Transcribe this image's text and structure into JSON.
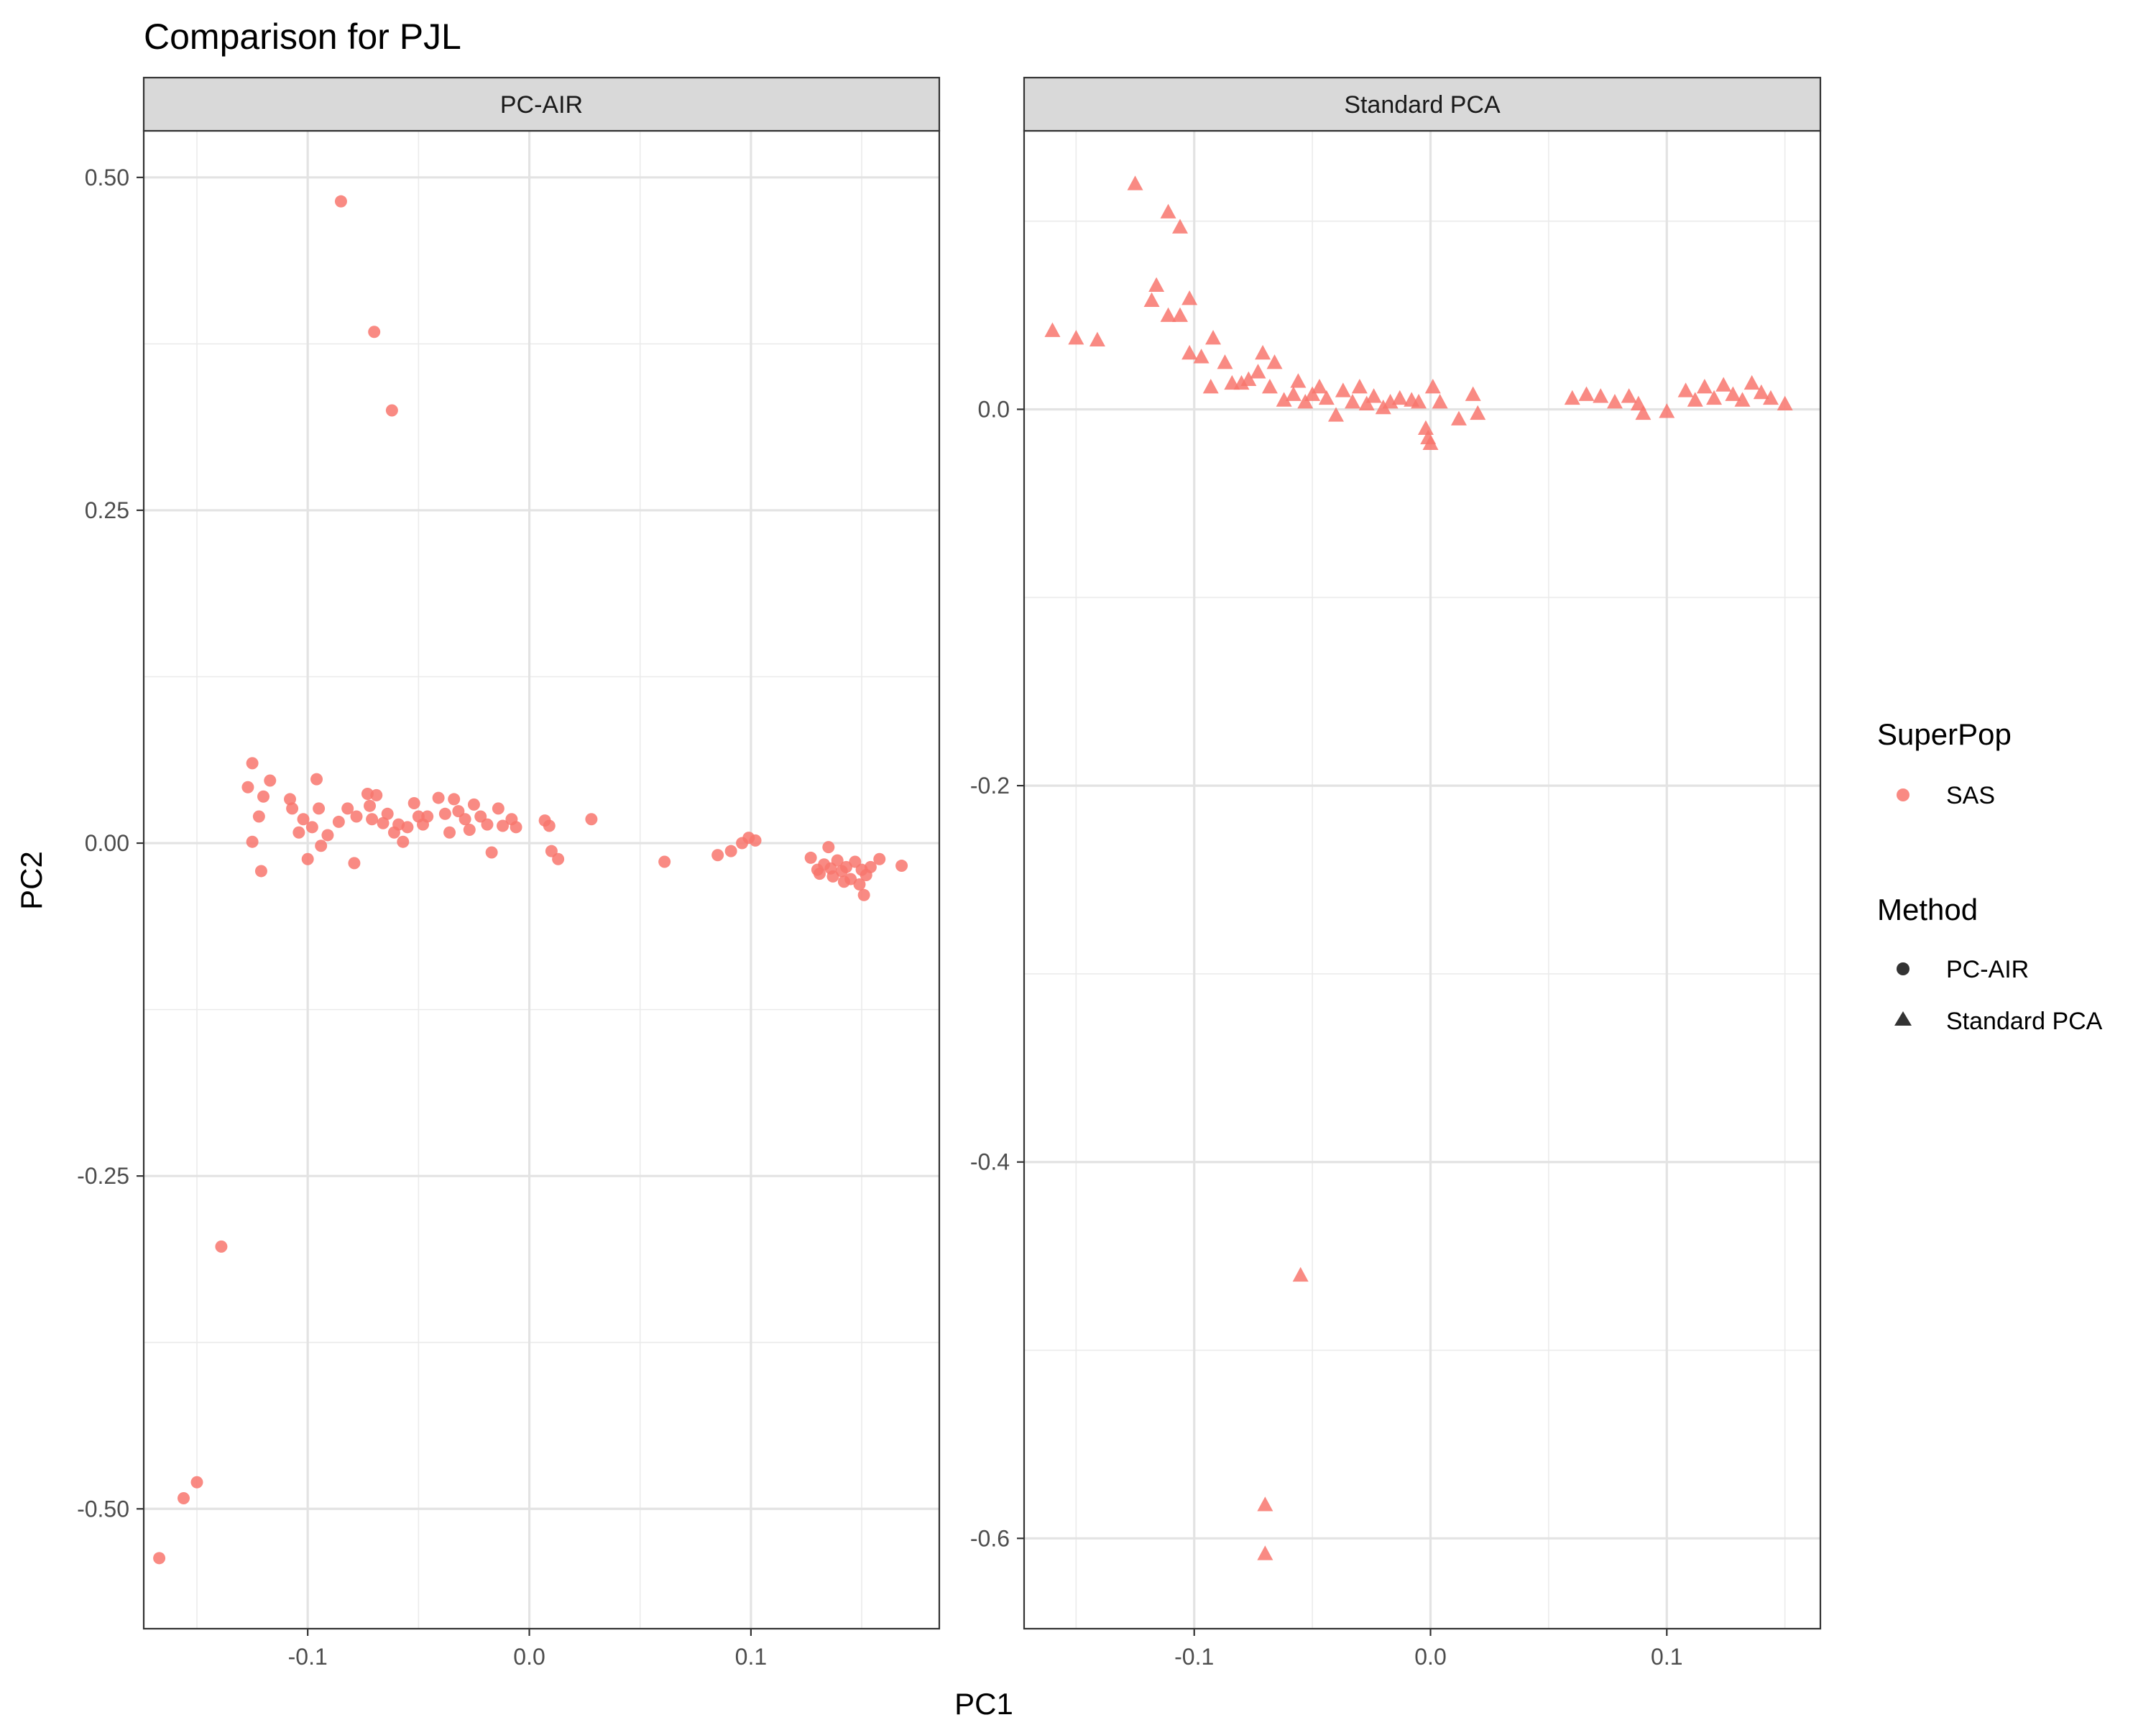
{
  "chart_data": {
    "type": "scatter",
    "title": "Comparison for PJL",
    "xlabel": "PC1",
    "ylabel": "PC2",
    "grid": true,
    "legend_placement": "right",
    "legends": {
      "color": {
        "title": "SuperPop",
        "entries": [
          {
            "label": "SAS",
            "color": "#F8766D"
          }
        ]
      },
      "shape": {
        "title": "Method",
        "entries": [
          {
            "label": "PC-AIR",
            "shape": "circle"
          },
          {
            "label": "Standard PCA",
            "shape": "triangle"
          }
        ]
      }
    },
    "colors": {
      "SAS": "#F8766D"
    },
    "panels": [
      {
        "name": "PC-AIR",
        "shape": "circle",
        "xlim": [
          -0.174,
          0.185
        ],
        "ylim": [
          -0.59,
          0.535
        ],
        "x_ticks": [
          -0.1,
          0.0,
          0.1
        ],
        "x_tick_labels": [
          "-0.1",
          "0.0",
          "0.1"
        ],
        "y_ticks": [
          -0.5,
          -0.25,
          0.0,
          0.25,
          0.5
        ],
        "y_tick_labels": [
          "-0.50",
          "-0.25",
          "0.00",
          "0.25",
          "0.50"
        ],
        "points": [
          [
            -0.085,
            0.482
          ],
          [
            -0.07,
            0.384
          ],
          [
            -0.062,
            0.325
          ],
          [
            -0.139,
            -0.303
          ],
          [
            -0.15,
            -0.48
          ],
          [
            -0.156,
            -0.492
          ],
          [
            -0.167,
            -0.537
          ],
          [
            -0.125,
            0.06
          ],
          [
            -0.127,
            0.042
          ],
          [
            -0.117,
            0.047
          ],
          [
            -0.12,
            0.035
          ],
          [
            -0.122,
            0.02
          ],
          [
            -0.125,
            0.001
          ],
          [
            -0.121,
            -0.021
          ],
          [
            -0.108,
            0.033
          ],
          [
            -0.107,
            0.026
          ],
          [
            -0.102,
            0.018
          ],
          [
            -0.098,
            0.012
          ],
          [
            -0.104,
            0.008
          ],
          [
            -0.1,
            -0.012
          ],
          [
            -0.094,
            -0.002
          ],
          [
            -0.096,
            0.048
          ],
          [
            -0.095,
            0.026
          ],
          [
            -0.091,
            0.006
          ],
          [
            -0.086,
            0.016
          ],
          [
            -0.082,
            0.026
          ],
          [
            -0.079,
            -0.015
          ],
          [
            -0.078,
            0.02
          ],
          [
            -0.073,
            0.037
          ],
          [
            -0.072,
            0.028
          ],
          [
            -0.071,
            0.018
          ],
          [
            -0.069,
            0.036
          ],
          [
            -0.066,
            0.015
          ],
          [
            -0.064,
            0.022
          ],
          [
            -0.061,
            0.008
          ],
          [
            -0.059,
            0.014
          ],
          [
            -0.057,
            0.001
          ],
          [
            -0.055,
            0.012
          ],
          [
            -0.052,
            0.03
          ],
          [
            -0.05,
            0.02
          ],
          [
            -0.048,
            0.014
          ],
          [
            -0.046,
            0.02
          ],
          [
            -0.041,
            0.034
          ],
          [
            -0.038,
            0.022
          ],
          [
            -0.036,
            0.008
          ],
          [
            -0.034,
            0.033
          ],
          [
            -0.032,
            0.024
          ],
          [
            -0.029,
            0.018
          ],
          [
            -0.027,
            0.01
          ],
          [
            -0.025,
            0.029
          ],
          [
            -0.022,
            0.02
          ],
          [
            -0.019,
            0.014
          ],
          [
            -0.017,
            -0.007
          ],
          [
            -0.014,
            0.026
          ],
          [
            -0.012,
            0.013
          ],
          [
            -0.008,
            0.018
          ],
          [
            -0.006,
            0.012
          ],
          [
            0.007,
            0.017
          ],
          [
            0.009,
            0.013
          ],
          [
            0.01,
            -0.006
          ],
          [
            0.013,
            -0.012
          ],
          [
            0.028,
            0.018
          ],
          [
            0.061,
            -0.014
          ],
          [
            0.085,
            -0.009
          ],
          [
            0.091,
            -0.006
          ],
          [
            0.096,
            0.0
          ],
          [
            0.099,
            0.004
          ],
          [
            0.102,
            0.002
          ],
          [
            0.127,
            -0.011
          ],
          [
            0.13,
            -0.02
          ],
          [
            0.133,
            -0.016
          ],
          [
            0.135,
            -0.003
          ],
          [
            0.137,
            -0.025
          ],
          [
            0.139,
            -0.013
          ],
          [
            0.141,
            -0.021
          ],
          [
            0.143,
            -0.018
          ],
          [
            0.145,
            -0.027
          ],
          [
            0.147,
            -0.014
          ],
          [
            0.15,
            -0.02
          ],
          [
            0.151,
            -0.039
          ],
          [
            0.152,
            -0.024
          ],
          [
            0.154,
            -0.018
          ],
          [
            0.158,
            -0.012
          ],
          [
            0.168,
            -0.017
          ],
          [
            0.131,
            -0.023
          ],
          [
            0.136,
            -0.019
          ],
          [
            0.142,
            -0.029
          ],
          [
            0.149,
            -0.031
          ]
        ]
      },
      {
        "name": "Standard PCA",
        "shape": "triangle",
        "xlim": [
          -0.172,
          0.165
        ],
        "ylim": [
          -0.648,
          0.148
        ],
        "x_ticks": [
          -0.1,
          0.0,
          0.1
        ],
        "x_tick_labels": [
          "-0.1",
          "0.0",
          "0.1"
        ],
        "y_ticks": [
          -0.6,
          -0.4,
          -0.2,
          0.0
        ],
        "y_tick_labels": [
          "-0.6",
          "-0.4",
          "-0.2",
          "0.0"
        ],
        "points": [
          [
            -0.125,
            0.12
          ],
          [
            -0.111,
            0.105
          ],
          [
            -0.106,
            0.097
          ],
          [
            -0.116,
            0.066
          ],
          [
            -0.118,
            0.058
          ],
          [
            -0.111,
            0.05
          ],
          [
            -0.106,
            0.05
          ],
          [
            -0.102,
            0.059
          ],
          [
            -0.102,
            0.03
          ],
          [
            -0.097,
            0.028
          ],
          [
            -0.092,
            0.038
          ],
          [
            -0.087,
            0.025
          ],
          [
            -0.093,
            0.012
          ],
          [
            -0.16,
            0.042
          ],
          [
            -0.15,
            0.038
          ],
          [
            -0.141,
            0.037
          ],
          [
            -0.084,
            0.014
          ],
          [
            -0.08,
            0.014
          ],
          [
            -0.077,
            0.016
          ],
          [
            -0.073,
            0.02
          ],
          [
            -0.071,
            0.03
          ],
          [
            -0.068,
            0.012
          ],
          [
            -0.066,
            0.025
          ],
          [
            -0.062,
            0.005
          ],
          [
            -0.058,
            0.008
          ],
          [
            -0.056,
            0.015
          ],
          [
            -0.053,
            0.004
          ],
          [
            -0.05,
            0.008
          ],
          [
            -0.047,
            0.012
          ],
          [
            -0.044,
            0.006
          ],
          [
            -0.04,
            -0.003
          ],
          [
            -0.037,
            0.01
          ],
          [
            -0.033,
            0.004
          ],
          [
            -0.03,
            0.012
          ],
          [
            -0.027,
            0.003
          ],
          [
            -0.024,
            0.007
          ],
          [
            -0.02,
            0.001
          ],
          [
            -0.017,
            0.004
          ],
          [
            -0.013,
            0.006
          ],
          [
            -0.008,
            0.005
          ],
          [
            -0.005,
            0.004
          ],
          [
            -0.002,
            -0.01
          ],
          [
            -0.001,
            -0.015
          ],
          [
            0.0,
            -0.018
          ],
          [
            0.001,
            0.012
          ],
          [
            0.004,
            0.004
          ],
          [
            0.012,
            -0.005
          ],
          [
            0.018,
            0.008
          ],
          [
            0.02,
            -0.002
          ],
          [
            0.06,
            0.006
          ],
          [
            0.066,
            0.008
          ],
          [
            0.072,
            0.007
          ],
          [
            0.078,
            0.004
          ],
          [
            0.084,
            0.007
          ],
          [
            0.088,
            0.003
          ],
          [
            0.09,
            -0.002
          ],
          [
            0.1,
            -0.001
          ],
          [
            0.108,
            0.01
          ],
          [
            0.112,
            0.005
          ],
          [
            0.116,
            0.012
          ],
          [
            0.12,
            0.006
          ],
          [
            0.124,
            0.013
          ],
          [
            0.128,
            0.008
          ],
          [
            0.132,
            0.005
          ],
          [
            0.136,
            0.014
          ],
          [
            0.14,
            0.009
          ],
          [
            0.144,
            0.006
          ],
          [
            0.15,
            0.003
          ],
          [
            -0.055,
            -0.46
          ],
          [
            -0.07,
            -0.582
          ],
          [
            -0.07,
            -0.608
          ]
        ]
      }
    ]
  }
}
